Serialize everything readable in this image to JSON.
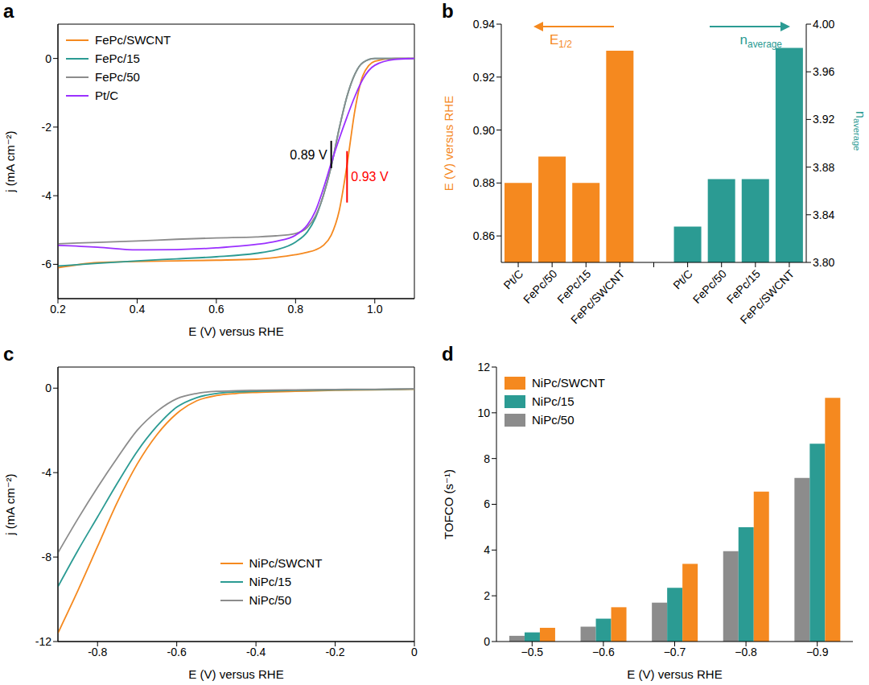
{
  "chart_data": [
    {
      "type": "line",
      "title": "a",
      "x_label": "E (V) versus RHE",
      "y_label": "j (mA cm⁻²)",
      "x": [
        0.2,
        0.3,
        0.4,
        0.5,
        0.6,
        0.7,
        0.75,
        0.8,
        0.83,
        0.85,
        0.87,
        0.89,
        0.91,
        0.93,
        0.95,
        0.97,
        1.0,
        1.05,
        1.1
      ],
      "series": [
        {
          "name": "FePc/SWCNT",
          "color": "#f5891f",
          "values": [
            -6.1,
            -5.95,
            -5.92,
            -5.9,
            -5.88,
            -5.85,
            -5.8,
            -5.72,
            -5.65,
            -5.58,
            -5.45,
            -5.15,
            -4.45,
            -3.1,
            -1.5,
            -0.5,
            -0.08,
            0,
            0
          ]
        },
        {
          "name": "FePc/15",
          "color": "#2b9b93",
          "values": [
            -6.05,
            -5.97,
            -5.9,
            -5.84,
            -5.78,
            -5.68,
            -5.58,
            -5.35,
            -5.05,
            -4.65,
            -4.0,
            -3.15,
            -2.05,
            -1.1,
            -0.45,
            -0.12,
            0,
            0,
            0
          ]
        },
        {
          "name": "FePc/50",
          "color": "#8c8c8c",
          "values": [
            -5.4,
            -5.36,
            -5.32,
            -5.27,
            -5.23,
            -5.2,
            -5.17,
            -5.1,
            -4.92,
            -4.6,
            -4.0,
            -3.15,
            -2.05,
            -1.1,
            -0.45,
            -0.12,
            0,
            0,
            0
          ]
        },
        {
          "name": "Pt/C",
          "color": "#9b30ff",
          "values": [
            -5.45,
            -5.5,
            -5.58,
            -5.57,
            -5.52,
            -5.42,
            -5.33,
            -5.15,
            -4.85,
            -4.45,
            -3.8,
            -3.05,
            -2.35,
            -1.7,
            -1.1,
            -0.6,
            -0.2,
            -0.03,
            0
          ]
        }
      ],
      "xlim": [
        0.2,
        1.1
      ],
      "xticks": [
        0.2,
        0.4,
        0.6,
        0.8,
        {
          "value": 1,
          "label": "1.0"
        }
      ],
      "ylim": [
        -7,
        1
      ],
      "yticks": [
        -6,
        -4,
        -2,
        0
      ],
      "legend": "upper left",
      "annotations": [
        {
          "text": "0.89 V",
          "x": 0.89,
          "y_from": -2.4,
          "y_to": -3.2,
          "color": "#000000"
        },
        {
          "text": "0.93 V",
          "x": 0.93,
          "y_from": -2.7,
          "y_to": -4.2,
          "color": "#ff0000"
        }
      ]
    },
    {
      "type": "bar",
      "title": "b",
      "y_label": "E (V) versus RHE",
      "y2_label": "naverage",
      "categories": [
        "Pt/C",
        "FePc/50",
        "FePc/15",
        "FePc/SWCNT",
        null,
        "Pt/C",
        "FePc/50",
        "FePc/15",
        "FePc/SWCNT"
      ],
      "series": [
        {
          "name": "E1/2",
          "color": "#f5891f",
          "values": [
            0.88,
            0.89,
            0.88,
            0.93,
            null,
            null,
            null,
            null,
            null
          ]
        },
        {
          "name": "naverage",
          "color": "#2b9b93",
          "axis": "y2",
          "values": [
            null,
            null,
            null,
            null,
            null,
            3.83,
            3.87,
            3.87,
            3.98
          ]
        }
      ],
      "ylim": [
        0.85,
        0.94
      ],
      "yticks": [
        0.86,
        0.88,
        {
          "value": 0.9,
          "label": "0.90"
        },
        0.92,
        0.94
      ],
      "y2lim": [
        3.8,
        4.0
      ],
      "y2ticks": [
        {
          "value": 3.8,
          "label": "3.80"
        },
        3.84,
        3.88,
        3.92,
        3.96,
        {
          "value": 4,
          "label": "4.00"
        }
      ]
    },
    {
      "type": "line",
      "title": "c",
      "x_label": "E (V) versus RHE",
      "y_label": "j (mA cm⁻²)",
      "x": [
        -0.9,
        -0.85,
        -0.8,
        -0.75,
        -0.7,
        -0.65,
        -0.6,
        -0.55,
        -0.5,
        -0.45,
        -0.4,
        -0.3,
        -0.2,
        -0.1,
        0
      ],
      "series": [
        {
          "name": "NiPc/SWCNT",
          "color": "#f5891f",
          "values": [
            -11.6,
            -9.6,
            -7.5,
            -5.4,
            -3.6,
            -2.2,
            -1.2,
            -0.6,
            -0.35,
            -0.25,
            -0.2,
            -0.15,
            -0.1,
            -0.08,
            -0.05
          ]
        },
        {
          "name": "NiPc/15",
          "color": "#2b9b93",
          "values": [
            -9.4,
            -7.7,
            -6.1,
            -4.5,
            -3.0,
            -1.8,
            -0.9,
            -0.45,
            -0.25,
            -0.18,
            -0.15,
            -0.1,
            -0.08,
            -0.06,
            -0.04
          ]
        },
        {
          "name": "NiPc/50",
          "color": "#8c8c8c",
          "values": [
            -7.8,
            -6.2,
            -4.7,
            -3.3,
            -2.0,
            -1.1,
            -0.5,
            -0.25,
            -0.15,
            -0.12,
            -0.1,
            -0.08,
            -0.06,
            -0.05,
            -0.03
          ]
        }
      ],
      "xlim": [
        -0.9,
        0
      ],
      "xticks": [
        -0.8,
        -0.6,
        -0.4,
        -0.2,
        0
      ],
      "ylim": [
        -12,
        1
      ],
      "yticks": [
        -12,
        -8,
        -4,
        0
      ],
      "legend": "lower center"
    },
    {
      "type": "bar",
      "title": "d",
      "x_label": "E (V) versus RHE",
      "y_label": "TOFCO (s⁻¹)",
      "categories": [
        "−0.5",
        "−0.6",
        "−0.7",
        "−0.8",
        "−0.9"
      ],
      "series": [
        {
          "name": "NiPc/SWCNT",
          "color": "#f5891f",
          "values": [
            0.6,
            1.5,
            3.4,
            6.55,
            10.65
          ]
        },
        {
          "name": "NiPc/15",
          "color": "#2b9b93",
          "values": [
            0.4,
            1.0,
            2.35,
            5.0,
            8.65
          ]
        },
        {
          "name": "NiPc/50",
          "color": "#8c8c8c",
          "values": [
            0.25,
            0.65,
            1.7,
            3.95,
            7.15
          ]
        }
      ],
      "ylim": [
        0,
        12
      ],
      "yticks": [
        0,
        2,
        4,
        6,
        8,
        10,
        12
      ],
      "legend": "upper left"
    }
  ]
}
